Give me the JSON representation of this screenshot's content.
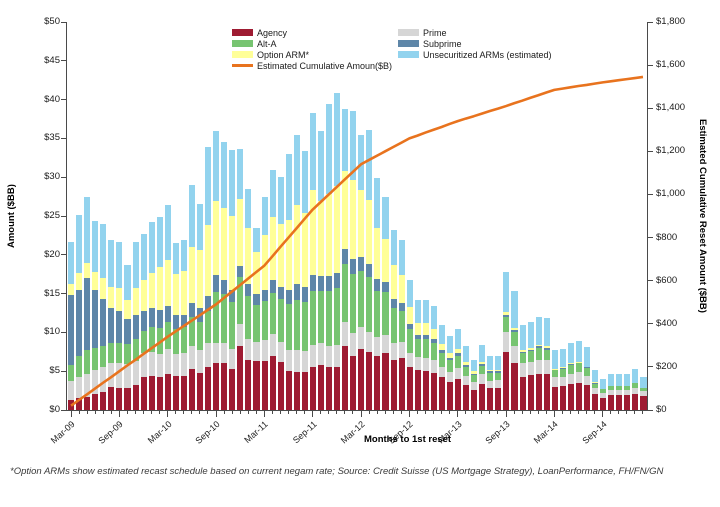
{
  "colors": {
    "agency": "#9E1B32",
    "prime": "#D6D6D6",
    "alt_a": "#77C471",
    "subprime": "#5E86A8",
    "option_arm": "#FFFF99",
    "unsecuritized": "#92D3EE",
    "cumulative_line": "#E8731E",
    "axis": "#4a4a4a"
  },
  "legend": {
    "col1": [
      {
        "label": "Agency",
        "color": "#9E1B32",
        "type": "box"
      },
      {
        "label": "Alt-A",
        "color": "#77C471",
        "type": "box"
      },
      {
        "label": "Option ARM*",
        "color": "#FFFF99",
        "type": "box"
      },
      {
        "label": "Estimated Cumulative Amoun($B)",
        "color": "#E8731E",
        "type": "line"
      }
    ],
    "col2": [
      {
        "label": "Prime",
        "color": "#D6D6D6",
        "type": "box"
      },
      {
        "label": "Subprime",
        "color": "#5E86A8",
        "type": "box"
      },
      {
        "label": "Unsecuritized ARMs (estimated)",
        "color": "#92D3EE",
        "type": "box"
      }
    ]
  },
  "footnote": "*Option ARMs show estimated recast schedule based on current negam rate; Source: Credit Suisse (US Mortgage Strategy), LoanPerformance, FH/FN/GN",
  "chart_data": {
    "type": "bar",
    "subtype": "stacked-bar-with-cumulative-line",
    "title": "",
    "xlabel": "Months to 1st reset",
    "ylabel_left": "Amount ($BB)",
    "ylabel_right": "Estimated Cumulative Reset Amount ($BB)",
    "y_left_max": 50,
    "y_right_max": 1800,
    "grid": false,
    "legend_position": "top-center",
    "y_left_ticks": [
      "$0",
      "$5",
      "$10",
      "$15",
      "$20",
      "$25",
      "$30",
      "$35",
      "$40",
      "$45",
      "$50"
    ],
    "y_right_ticks": [
      "$0",
      "$200",
      "$400",
      "$600",
      "$800",
      "$1,000",
      "$1,200",
      "$1,400",
      "$1,600",
      "$1,800"
    ],
    "x_tick_labels": [
      "Mar-09",
      "Sep-09",
      "Mar-10",
      "Sep-10",
      "Mar-11",
      "Sep-11",
      "Mar-12",
      "Sep-12",
      "Mar-13",
      "Sep-13",
      "Mar-14",
      "Sep-14"
    ],
    "x_tick_every": 6,
    "categories": [
      "Mar-09",
      "Apr-09",
      "May-09",
      "Jun-09",
      "Jul-09",
      "Aug-09",
      "Sep-09",
      "Oct-09",
      "Nov-09",
      "Dec-09",
      "Jan-10",
      "Feb-10",
      "Mar-10",
      "Apr-10",
      "May-10",
      "Jun-10",
      "Jul-10",
      "Aug-10",
      "Sep-10",
      "Oct-10",
      "Nov-10",
      "Dec-10",
      "Jan-11",
      "Feb-11",
      "Mar-11",
      "Apr-11",
      "May-11",
      "Jun-11",
      "Jul-11",
      "Aug-11",
      "Sep-11",
      "Oct-11",
      "Nov-11",
      "Dec-11",
      "Jan-12",
      "Feb-12",
      "Mar-12",
      "Apr-12",
      "May-12",
      "Jun-12",
      "Jul-12",
      "Aug-12",
      "Sep-12",
      "Oct-12",
      "Nov-12",
      "Dec-12",
      "Jan-13",
      "Feb-13",
      "Mar-13",
      "Apr-13",
      "May-13",
      "Jun-13",
      "Jul-13",
      "Aug-13",
      "Sep-13",
      "Oct-13",
      "Nov-13",
      "Dec-13",
      "Jan-14",
      "Feb-14",
      "Mar-14",
      "Apr-14",
      "May-14",
      "Jun-14",
      "Jul-14",
      "Aug-14",
      "Sep-14",
      "Oct-14",
      "Nov-14",
      "Dec-14",
      "Jan-15",
      "Feb-15"
    ],
    "series": [
      {
        "name": "Agency",
        "color": "#9E1B32",
        "values": [
          1.3,
          1.5,
          1.7,
          2.0,
          2.3,
          3.0,
          2.8,
          2.9,
          3.2,
          4.3,
          4.4,
          4.2,
          4.6,
          4.4,
          4.4,
          5.3,
          4.8,
          5.6,
          6.0,
          6.0,
          5.3,
          8.3,
          6.5,
          6.3,
          6.3,
          7.0,
          6.2,
          5.0,
          4.9,
          4.9,
          5.5,
          5.8,
          5.5,
          5.5,
          8.3,
          7.0,
          7.9,
          7.5,
          6.9,
          7.3,
          6.5,
          6.7,
          5.6,
          5.2,
          5.0,
          4.8,
          4.2,
          3.6,
          4.0,
          3.2,
          2.6,
          3.4,
          2.8,
          2.8,
          7.5,
          6.0,
          4.3,
          4.5,
          4.7,
          4.6,
          3.0,
          3.1,
          3.4,
          3.5,
          3.2,
          2.0,
          1.6,
          1.9,
          1.9,
          1.9,
          2.1,
          1.8
        ]
      },
      {
        "name": "Prime",
        "color": "#D6D6D6",
        "values": [
          2.5,
          2.8,
          3.0,
          3.1,
          3.2,
          3.0,
          3.2,
          3.0,
          3.1,
          3.0,
          3.1,
          3.0,
          3.2,
          2.8,
          2.9,
          3.0,
          3.0,
          3.1,
          2.6,
          2.7,
          2.6,
          2.8,
          2.7,
          2.5,
          2.7,
          2.8,
          2.6,
          2.7,
          2.8,
          2.7,
          2.9,
          2.8,
          2.8,
          2.9,
          3.0,
          2.9,
          2.8,
          2.6,
          2.5,
          2.4,
          2.2,
          2.1,
          1.8,
          1.6,
          1.7,
          1.6,
          1.4,
          1.3,
          1.4,
          1.2,
          1.0,
          1.2,
          1.0,
          1.1,
          2.6,
          2.3,
          1.7,
          1.7,
          1.8,
          1.8,
          1.2,
          1.2,
          1.3,
          1.4,
          1.2,
          0.8,
          0.6,
          0.7,
          0.7,
          0.7,
          0.8,
          0.6
        ]
      },
      {
        "name": "Alt-A",
        "color": "#77C471",
        "values": [
          2.0,
          2.6,
          3.0,
          2.9,
          2.8,
          2.7,
          2.7,
          2.6,
          2.8,
          2.9,
          3.2,
          3.4,
          3.6,
          3.3,
          3.4,
          3.7,
          3.6,
          4.0,
          6.6,
          6.3,
          6.0,
          6.0,
          5.5,
          4.7,
          5.0,
          5.3,
          5.5,
          6.0,
          6.5,
          6.3,
          7.0,
          6.8,
          7.0,
          7.3,
          7.5,
          7.6,
          7.2,
          7.0,
          6.0,
          5.5,
          4.5,
          4.0,
          3.0,
          2.4,
          2.5,
          2.3,
          1.8,
          1.5,
          1.6,
          1.2,
          0.9,
          1.1,
          1.0,
          0.9,
          1.9,
          1.7,
          1.3,
          1.4,
          1.5,
          1.4,
          0.9,
          1.0,
          1.1,
          1.1,
          1.0,
          0.6,
          0.5,
          0.5,
          0.5,
          0.5,
          0.6,
          0.4
        ]
      },
      {
        "name": "Subprime",
        "color": "#5E86A8",
        "values": [
          9.0,
          8.6,
          9.3,
          7.5,
          6.0,
          4.5,
          4.0,
          3.2,
          3.1,
          2.5,
          2.5,
          2.3,
          2.0,
          1.7,
          1.6,
          1.8,
          1.7,
          2.0,
          2.2,
          1.7,
          1.6,
          1.5,
          1.5,
          1.4,
          1.5,
          1.6,
          1.6,
          1.8,
          2.0,
          1.9,
          2.0,
          1.9,
          2.0,
          2.0,
          2.0,
          2.0,
          1.8,
          1.7,
          1.5,
          1.3,
          1.1,
          1.0,
          0.7,
          0.5,
          0.5,
          0.4,
          0.3,
          0.3,
          0.3,
          0.2,
          0.2,
          0.2,
          0.2,
          0.2,
          0.3,
          0.3,
          0.2,
          0.2,
          0.2,
          0.2,
          0.1,
          0.1,
          0.1,
          0.1,
          0.1,
          0.1,
          0.0,
          0.0,
          0.0,
          0.0,
          0.0,
          0.0
        ]
      },
      {
        "name": "Option ARM*",
        "color": "#FFFF99",
        "values": [
          1.4,
          2.2,
          2.0,
          2.3,
          2.7,
          2.7,
          3.0,
          2.5,
          3.5,
          4.0,
          4.5,
          5.5,
          6.0,
          5.3,
          5.6,
          7.2,
          7.5,
          9.2,
          9.6,
          9.3,
          9.5,
          8.6,
          7.3,
          5.5,
          7.0,
          8.2,
          8.1,
          9.0,
          10.2,
          9.6,
          10.9,
          9.7,
          10.5,
          11.2,
          10.0,
          10.1,
          8.7,
          8.3,
          6.5,
          5.5,
          4.4,
          3.6,
          2.2,
          1.5,
          1.5,
          1.3,
          0.8,
          0.6,
          0.6,
          0.4,
          0.3,
          0.3,
          0.2,
          0.2,
          0.3,
          0.3,
          0.2,
          0.2,
          0.2,
          0.2,
          0.1,
          0.1,
          0.1,
          0.1,
          0.1,
          0.1,
          0.0,
          0.0,
          0.0,
          0.0,
          0.0,
          0.0
        ]
      },
      {
        "name": "Unsecuritized ARMs (estimated)",
        "color": "#92D3EE",
        "values": [
          5.4,
          7.5,
          8.5,
          6.5,
          7.0,
          6.0,
          6.0,
          4.5,
          6.0,
          6.0,
          6.5,
          6.5,
          7.0,
          4.0,
          4.0,
          8.0,
          6.0,
          10.0,
          9.0,
          8.5,
          8.5,
          6.5,
          5.0,
          3.0,
          5.0,
          6.0,
          6.0,
          8.5,
          9.0,
          8.0,
          10.0,
          9.0,
          11.7,
          12.0,
          8.0,
          9.0,
          7.0,
          9.0,
          6.5,
          5.5,
          4.5,
          4.5,
          3.5,
          3.0,
          3.0,
          3.0,
          2.5,
          2.2,
          2.5,
          2.0,
          1.5,
          2.2,
          1.8,
          1.8,
          5.2,
          4.7,
          3.2,
          3.3,
          3.6,
          3.6,
          2.4,
          2.4,
          2.7,
          2.7,
          2.5,
          1.5,
          1.3,
          1.6,
          1.6,
          1.6,
          1.8,
          1.5
        ]
      }
    ],
    "line": {
      "name": "Estimated Cumulative Amoun($B)",
      "color": "#E8731E",
      "axis": "right",
      "values": [
        20,
        47,
        73,
        100,
        127,
        153,
        180,
        207,
        233,
        260,
        287,
        313,
        340,
        365,
        390,
        415,
        440,
        465,
        490,
        520,
        550,
        580,
        610,
        640,
        670,
        713,
        757,
        800,
        843,
        887,
        930,
        965,
        1000,
        1035,
        1070,
        1105,
        1140,
        1160,
        1180,
        1200,
        1220,
        1240,
        1260,
        1273,
        1287,
        1300,
        1313,
        1327,
        1340,
        1352,
        1363,
        1375,
        1387,
        1398,
        1410,
        1423,
        1435,
        1448,
        1460,
        1473,
        1485,
        1491,
        1497,
        1503,
        1508,
        1514,
        1520,
        1525,
        1530,
        1535,
        1540,
        1545
      ]
    }
  }
}
